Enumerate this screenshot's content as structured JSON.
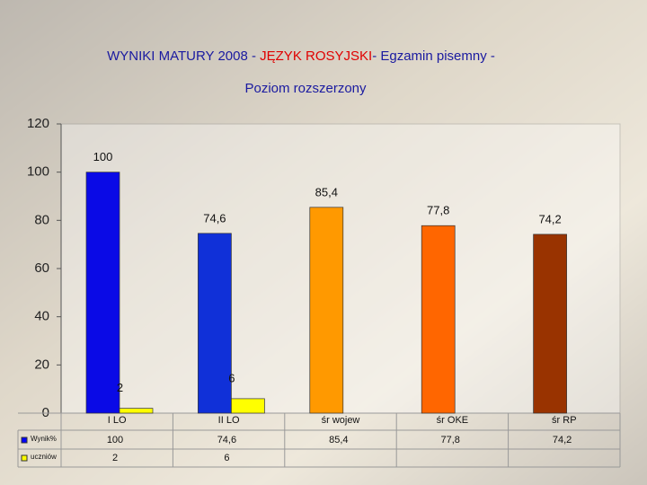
{
  "chart_data": {
    "type": "bar",
    "title_parts": [
      "WYNIKI MATURY 2008 - ",
      "JĘZYK ROSYJSKI",
      "- Egzamin pisemny -"
    ],
    "subtitle": "Poziom rozszerzony",
    "categories": [
      "I LO",
      "II LO",
      "śr  wojew",
      "śr  OKE",
      "śr  RP"
    ],
    "series": [
      {
        "name": "Wynik%",
        "color": "#0000ff",
        "colors": [
          "#0a0ae6",
          "#1030d8",
          "#ff9900",
          "#ff6600",
          "#993300"
        ],
        "values": [
          100,
          74.6,
          85.4,
          77.8,
          74.2
        ],
        "value_labels": [
          "100",
          "74,6",
          "85,4",
          "77,8",
          "74,2"
        ]
      },
      {
        "name": "uczniów",
        "color": "#ffff00",
        "values": [
          2,
          6,
          null,
          null,
          null
        ],
        "value_labels": [
          "2",
          "6",
          null,
          null,
          null
        ]
      }
    ],
    "ylim": [
      0,
      120
    ],
    "yticks": [
      0,
      20,
      40,
      60,
      80,
      100,
      120
    ],
    "grid": false
  }
}
